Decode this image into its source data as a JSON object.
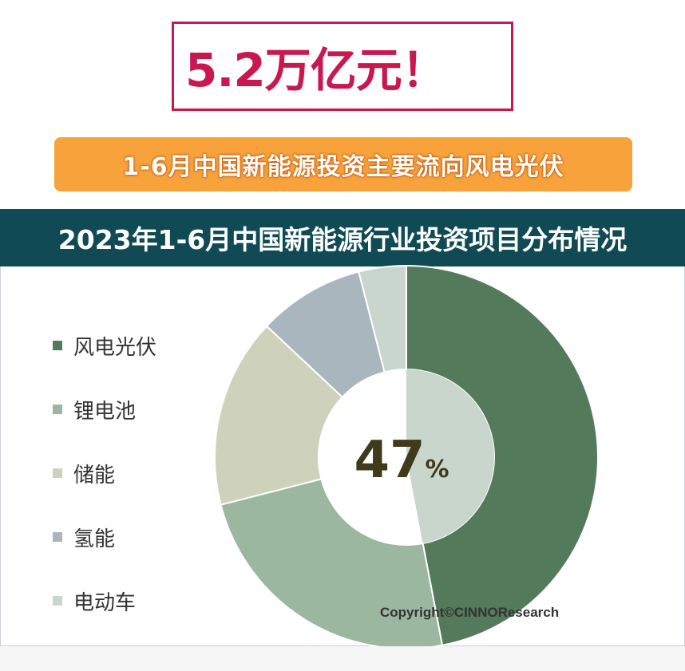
{
  "headline": "5.2万亿元！",
  "subheadline": "1-6月中国新能源投资主要流向风电光伏",
  "copyright": "Copyright©CINNOResearch",
  "chart_data": {
    "type": "pie",
    "title": "2023年1-6月中国新能源行业投资项目分布情况",
    "categories": [
      "风电光伏",
      "锂电池",
      "储能",
      "氢能",
      "电动车"
    ],
    "values": [
      47,
      24,
      16,
      9,
      4
    ],
    "colors": [
      "#537a5a",
      "#9bb7a0",
      "#cfd2bb",
      "#a9b6bd",
      "#c9d6cd"
    ],
    "center_label": {
      "number": "47",
      "unit": "%"
    },
    "inner_highlight_color": "#c9d6cc",
    "legend_position": "left",
    "style": "donut"
  }
}
